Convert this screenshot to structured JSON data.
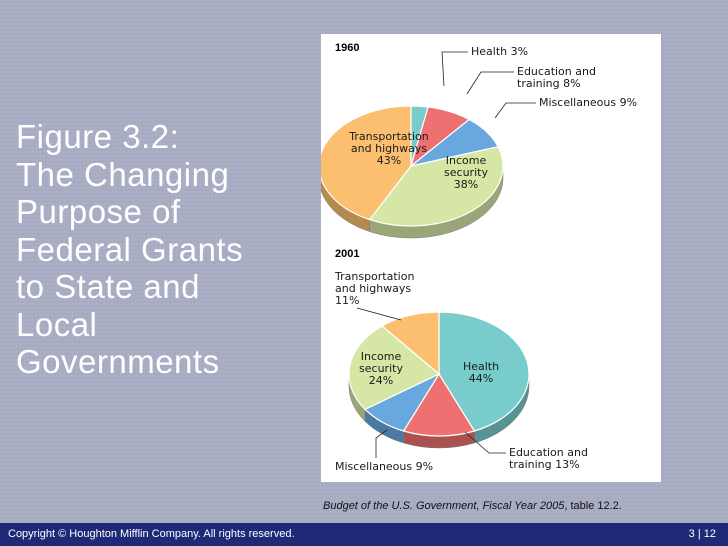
{
  "title": "Figure 3.2:\nThe Changing\nPurpose of\nFederal Grants\nto State and\nLocal\nGovernments",
  "caption": {
    "source_italic": "Budget of the U.S. Government, Fiscal Year 2005",
    "source_rest": ", table 12.2."
  },
  "footer": {
    "copyright": "Copyright © Houghton Mifflin Company. All rights reserved.",
    "page": "3 | 12"
  },
  "colors": {
    "transportation": "#fbbf6f",
    "income": "#d6e7a5",
    "health": "#79cccc",
    "education": "#ee7070",
    "misc": "#68a8df"
  },
  "chart_data": [
    {
      "type": "pie",
      "title": "1960",
      "slices": [
        {
          "key": "health",
          "label_lines": [
            "Health 3%"
          ],
          "value": 3
        },
        {
          "key": "education",
          "label_lines": [
            "Education and",
            "training 8%"
          ],
          "value": 8
        },
        {
          "key": "misc",
          "label_lines": [
            "Miscellaneous 9%"
          ],
          "value": 9
        },
        {
          "key": "income",
          "label_lines": [
            "Income",
            "security",
            "38%"
          ],
          "value": 38
        },
        {
          "key": "transportation",
          "label_lines": [
            "Transportation",
            "and highways",
            "43%"
          ],
          "value": 43
        }
      ]
    },
    {
      "type": "pie",
      "title": "2001",
      "slices": [
        {
          "key": "health",
          "label_lines": [
            "Health",
            "44%"
          ],
          "value": 44
        },
        {
          "key": "education",
          "label_lines": [
            "Education and",
            "training 13%"
          ],
          "value": 13
        },
        {
          "key": "misc",
          "label_lines": [
            "Miscellaneous 9%"
          ],
          "value": 9
        },
        {
          "key": "income",
          "label_lines": [
            "Income",
            "security",
            "24%"
          ],
          "value": 24
        },
        {
          "key": "transportation",
          "label_lines": [
            "Transportation",
            "and highways",
            "11%"
          ],
          "value": 11
        }
      ]
    }
  ]
}
